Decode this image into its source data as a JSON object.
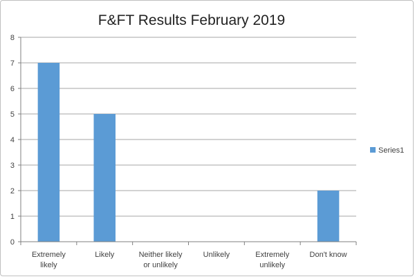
{
  "chart_data": {
    "type": "bar",
    "title": "F&FT Results February 2019",
    "categories": [
      [
        "Extremely",
        "likely"
      ],
      [
        "Likely"
      ],
      [
        "Neither likely",
        "or unlikely"
      ],
      [
        "Unlikely"
      ],
      [
        "Extremely",
        "unlikely"
      ],
      [
        "Don't know"
      ]
    ],
    "series": [
      {
        "name": "Series1",
        "values": [
          7,
          5,
          0,
          0,
          0,
          2
        ]
      }
    ],
    "ylim": [
      0,
      8
    ],
    "yticks": [
      0,
      1,
      2,
      3,
      4,
      5,
      6,
      7,
      8
    ],
    "grid": true,
    "legend_position": "right",
    "colors": {
      "bar": "#5b9bd5",
      "grid": "#a6a6a6",
      "axis": "#7f7f7f"
    }
  }
}
